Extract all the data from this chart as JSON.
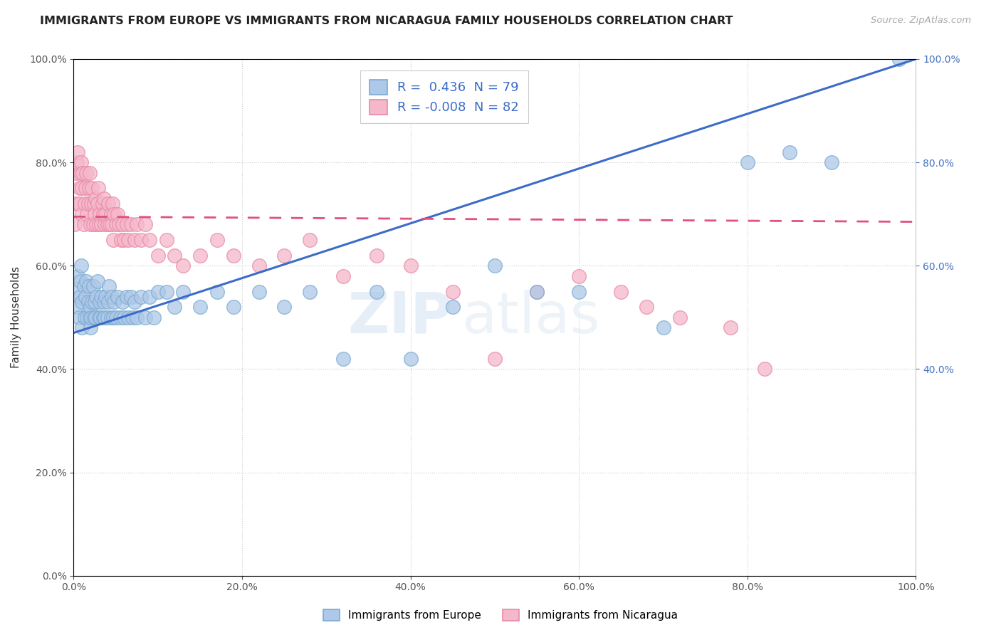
{
  "title": "IMMIGRANTS FROM EUROPE VS IMMIGRANTS FROM NICARAGUA FAMILY HOUSEHOLDS CORRELATION CHART",
  "source": "Source: ZipAtlas.com",
  "ylabel": "Family Households",
  "xlim": [
    0.0,
    1.0
  ],
  "ylim": [
    0.0,
    1.0
  ],
  "xticks": [
    0.0,
    0.2,
    0.4,
    0.6,
    0.8,
    1.0
  ],
  "yticks": [
    0.0,
    0.2,
    0.4,
    0.6,
    0.8,
    1.0
  ],
  "europe_color": "#adc8e8",
  "europe_edge": "#7aaad0",
  "nicaragua_color": "#f5b8ca",
  "nicaragua_edge": "#e888a8",
  "europe_R": 0.436,
  "europe_N": 79,
  "nicaragua_R": -0.008,
  "nicaragua_N": 82,
  "europe_line_color": "#3b6cc7",
  "nicaragua_line_color": "#e05080",
  "legend_europe": "Immigrants from Europe",
  "legend_nicaragua": "Immigrants from Nicaragua",
  "watermark_zip": "ZIP",
  "watermark_atlas": "atlas",
  "background_color": "#ffffff",
  "grid_color": "#cccccc",
  "title_fontsize": 11.5,
  "axis_label_fontsize": 11,
  "tick_fontsize": 10,
  "legend_fontsize": 13,
  "right_tick_color": "#4472c4",
  "europe_scatter_x": [
    0.003,
    0.004,
    0.005,
    0.006,
    0.007,
    0.008,
    0.009,
    0.01,
    0.01,
    0.012,
    0.013,
    0.014,
    0.015,
    0.016,
    0.017,
    0.018,
    0.019,
    0.02,
    0.02,
    0.021,
    0.022,
    0.023,
    0.024,
    0.025,
    0.026,
    0.027,
    0.028,
    0.03,
    0.031,
    0.032,
    0.033,
    0.035,
    0.036,
    0.037,
    0.038,
    0.04,
    0.041,
    0.042,
    0.044,
    0.045,
    0.047,
    0.048,
    0.05,
    0.052,
    0.055,
    0.058,
    0.06,
    0.063,
    0.065,
    0.068,
    0.07,
    0.072,
    0.075,
    0.08,
    0.085,
    0.09,
    0.095,
    0.1,
    0.11,
    0.12,
    0.13,
    0.15,
    0.17,
    0.19,
    0.22,
    0.25,
    0.28,
    0.32,
    0.36,
    0.4,
    0.45,
    0.5,
    0.55,
    0.6,
    0.7,
    0.8,
    0.85,
    0.9,
    0.98
  ],
  "europe_scatter_y": [
    0.52,
    0.55,
    0.58,
    0.5,
    0.54,
    0.57,
    0.6,
    0.48,
    0.53,
    0.56,
    0.5,
    0.54,
    0.57,
    0.5,
    0.53,
    0.56,
    0.5,
    0.48,
    0.52,
    0.5,
    0.53,
    0.56,
    0.5,
    0.53,
    0.5,
    0.54,
    0.57,
    0.5,
    0.53,
    0.5,
    0.54,
    0.5,
    0.53,
    0.5,
    0.54,
    0.5,
    0.53,
    0.56,
    0.5,
    0.54,
    0.5,
    0.53,
    0.5,
    0.54,
    0.5,
    0.53,
    0.5,
    0.54,
    0.5,
    0.54,
    0.5,
    0.53,
    0.5,
    0.54,
    0.5,
    0.54,
    0.5,
    0.55,
    0.55,
    0.52,
    0.55,
    0.52,
    0.55,
    0.52,
    0.55,
    0.52,
    0.55,
    0.42,
    0.55,
    0.42,
    0.52,
    0.6,
    0.55,
    0.55,
    0.48,
    0.8,
    0.82,
    0.8,
    1.0
  ],
  "nicaragua_scatter_x": [
    0.001,
    0.002,
    0.003,
    0.004,
    0.005,
    0.006,
    0.007,
    0.008,
    0.009,
    0.01,
    0.01,
    0.011,
    0.012,
    0.013,
    0.014,
    0.015,
    0.016,
    0.017,
    0.018,
    0.019,
    0.02,
    0.021,
    0.022,
    0.023,
    0.024,
    0.025,
    0.026,
    0.027,
    0.028,
    0.029,
    0.03,
    0.031,
    0.033,
    0.034,
    0.035,
    0.036,
    0.037,
    0.038,
    0.04,
    0.041,
    0.043,
    0.044,
    0.045,
    0.046,
    0.047,
    0.048,
    0.05,
    0.052,
    0.054,
    0.056,
    0.058,
    0.06,
    0.063,
    0.065,
    0.068,
    0.072,
    0.075,
    0.08,
    0.085,
    0.09,
    0.1,
    0.11,
    0.12,
    0.13,
    0.15,
    0.17,
    0.19,
    0.22,
    0.25,
    0.28,
    0.32,
    0.36,
    0.4,
    0.45,
    0.5,
    0.55,
    0.6,
    0.65,
    0.68,
    0.72,
    0.78,
    0.82
  ],
  "nicaragua_scatter_y": [
    0.68,
    0.72,
    0.78,
    0.8,
    0.82,
    0.72,
    0.75,
    0.78,
    0.8,
    0.7,
    0.75,
    0.78,
    0.68,
    0.72,
    0.75,
    0.78,
    0.7,
    0.72,
    0.75,
    0.78,
    0.68,
    0.72,
    0.75,
    0.68,
    0.72,
    0.7,
    0.73,
    0.68,
    0.72,
    0.75,
    0.68,
    0.7,
    0.68,
    0.72,
    0.7,
    0.73,
    0.68,
    0.7,
    0.68,
    0.72,
    0.68,
    0.7,
    0.68,
    0.72,
    0.65,
    0.7,
    0.68,
    0.7,
    0.68,
    0.65,
    0.68,
    0.65,
    0.68,
    0.65,
    0.68,
    0.65,
    0.68,
    0.65,
    0.68,
    0.65,
    0.62,
    0.65,
    0.62,
    0.6,
    0.62,
    0.65,
    0.62,
    0.6,
    0.62,
    0.65,
    0.58,
    0.62,
    0.6,
    0.55,
    0.42,
    0.55,
    0.58,
    0.55,
    0.52,
    0.5,
    0.48,
    0.4
  ],
  "europe_line_x0": 0.0,
  "europe_line_y0": 0.47,
  "europe_line_x1": 1.0,
  "europe_line_y1": 1.0,
  "nicaragua_line_x0": 0.0,
  "nicaragua_line_y0": 0.695,
  "nicaragua_line_x1": 1.0,
  "nicaragua_line_y1": 0.685
}
